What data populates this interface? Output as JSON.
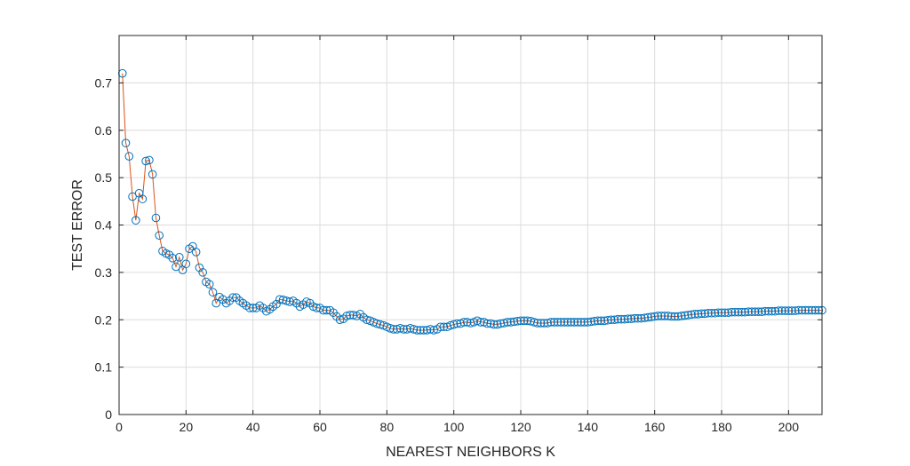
{
  "chart_data": {
    "type": "line",
    "title": "",
    "xlabel": "NEAREST NEIGHBORS K",
    "ylabel": "TEST ERROR",
    "xlim": [
      0,
      210
    ],
    "ylim": [
      0,
      0.8
    ],
    "xticks": [
      0,
      20,
      40,
      60,
      80,
      100,
      120,
      140,
      160,
      180,
      200
    ],
    "yticks": [
      0,
      0.1,
      0.2,
      0.3,
      0.4,
      0.5,
      0.6,
      0.7
    ],
    "xtick_labels": [
      "0",
      "20",
      "40",
      "60",
      "80",
      "100",
      "120",
      "140",
      "160",
      "180",
      "200"
    ],
    "ytick_labels": [
      "0",
      "0.1",
      "0.2",
      "0.3",
      "0.4",
      "0.5",
      "0.6",
      "0.7"
    ],
    "grid": true,
    "legend": "none",
    "colors": {
      "markers": "#0072BD",
      "line": "#D95319"
    },
    "series": [
      {
        "x_start": 1,
        "x_step": 1,
        "values": [
          0.72,
          0.573,
          0.545,
          0.46,
          0.41,
          0.467,
          0.455,
          0.535,
          0.537,
          0.507,
          0.415,
          0.378,
          0.345,
          0.34,
          0.337,
          0.33,
          0.312,
          0.332,
          0.305,
          0.318,
          0.35,
          0.355,
          0.343,
          0.31,
          0.3,
          0.28,
          0.275,
          0.258,
          0.235,
          0.248,
          0.243,
          0.235,
          0.24,
          0.247,
          0.247,
          0.24,
          0.235,
          0.23,
          0.225,
          0.225,
          0.225,
          0.23,
          0.225,
          0.218,
          0.222,
          0.228,
          0.233,
          0.243,
          0.242,
          0.24,
          0.238,
          0.24,
          0.235,
          0.228,
          0.232,
          0.238,
          0.235,
          0.228,
          0.225,
          0.225,
          0.22,
          0.22,
          0.22,
          0.215,
          0.207,
          0.2,
          0.202,
          0.208,
          0.21,
          0.21,
          0.208,
          0.212,
          0.205,
          0.2,
          0.198,
          0.195,
          0.192,
          0.19,
          0.188,
          0.185,
          0.182,
          0.18,
          0.18,
          0.182,
          0.18,
          0.18,
          0.182,
          0.18,
          0.178,
          0.178,
          0.178,
          0.178,
          0.18,
          0.178,
          0.18,
          0.185,
          0.185,
          0.185,
          0.188,
          0.19,
          0.192,
          0.192,
          0.195,
          0.195,
          0.193,
          0.195,
          0.198,
          0.195,
          0.195,
          0.192,
          0.192,
          0.19,
          0.19,
          0.192,
          0.193,
          0.195,
          0.195,
          0.196,
          0.197,
          0.198,
          0.198,
          0.198,
          0.197,
          0.195,
          0.193,
          0.193,
          0.193,
          0.193,
          0.195,
          0.195,
          0.195,
          0.195,
          0.195,
          0.195,
          0.195,
          0.195,
          0.195,
          0.195,
          0.195,
          0.195,
          0.196,
          0.197,
          0.198,
          0.198,
          0.198,
          0.199,
          0.2,
          0.2,
          0.201,
          0.201,
          0.201,
          0.202,
          0.202,
          0.203,
          0.203,
          0.203,
          0.204,
          0.205,
          0.206,
          0.207,
          0.208,
          0.208,
          0.208,
          0.208,
          0.207,
          0.207,
          0.207,
          0.208,
          0.209,
          0.21,
          0.211,
          0.212,
          0.212,
          0.213,
          0.213,
          0.214,
          0.214,
          0.214,
          0.215,
          0.215,
          0.215,
          0.215,
          0.216,
          0.216,
          0.216,
          0.216,
          0.216,
          0.217,
          0.217,
          0.217,
          0.217,
          0.217,
          0.218,
          0.218,
          0.218,
          0.218,
          0.219,
          0.219,
          0.219,
          0.219,
          0.219,
          0.219,
          0.22,
          0.22,
          0.22,
          0.22,
          0.22,
          0.22,
          0.22,
          0.22
        ]
      }
    ]
  }
}
